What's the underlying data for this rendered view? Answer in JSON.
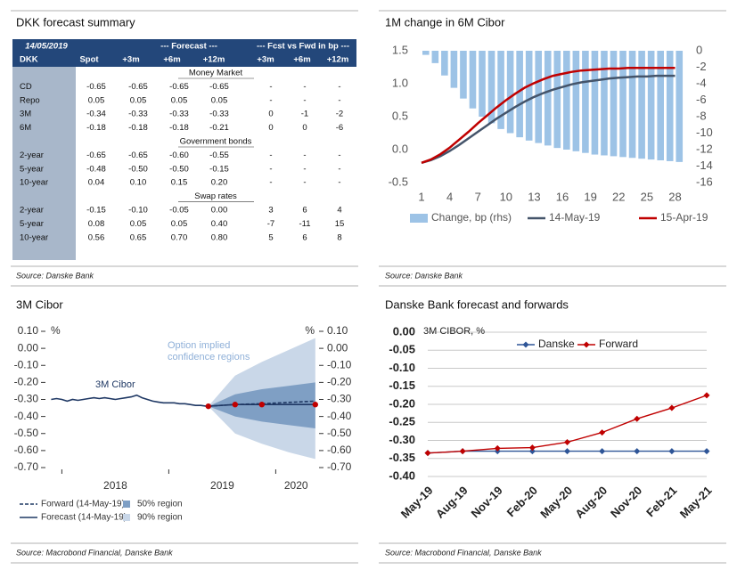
{
  "table": {
    "title": "DKK forecast summary",
    "header": [
      [
        "14/05/2019",
        "--- Forecast ---",
        "--- Fcst vs Fwd in bp ---"
      ],
      [
        "DKK",
        "Spot",
        "+3m",
        "+6m",
        "+12m",
        "+3m",
        "+6m",
        "+12m"
      ]
    ],
    "sections": [
      {
        "name": "Money Market",
        "rows": [
          [
            "CD",
            "-0.65",
            "-0.65",
            "-0.65",
            "-0.65",
            "-",
            "-",
            "-"
          ],
          [
            "Repo",
            "0.05",
            "0.05",
            "0.05",
            "0.05",
            "-",
            "-",
            "-"
          ],
          [
            "3M",
            "-0.34",
            "-0.33",
            "-0.33",
            "-0.33",
            "0",
            "-1",
            "-2"
          ],
          [
            "6M",
            "-0.18",
            "-0.18",
            "-0.18",
            "-0.21",
            "0",
            "0",
            "-6"
          ]
        ]
      },
      {
        "name": "Government bonds",
        "rows": [
          [
            "2-year",
            "-0.65",
            "-0.65",
            "-0.60",
            "-0.55",
            "-",
            "-",
            "-"
          ],
          [
            "5-year",
            "-0.48",
            "-0.50",
            "-0.50",
            "-0.15",
            "-",
            "-",
            "-"
          ],
          [
            "10-year",
            "0.04",
            "0.10",
            "0.15",
            "0.20",
            "-",
            "-",
            "-"
          ]
        ]
      },
      {
        "name": "Swap rates",
        "rows": [
          [
            "2-year",
            "-0.15",
            "-0.10",
            "-0.05",
            "0.00",
            "3",
            "6",
            "4"
          ],
          [
            "5-year",
            "0.08",
            "0.05",
            "0.05",
            "0.40",
            "-7",
            "-11",
            "15"
          ],
          [
            "10-year",
            "0.56",
            "0.65",
            "0.70",
            "0.80",
            "5",
            "6",
            "8"
          ]
        ]
      }
    ],
    "source": "Source: Danske Bank"
  },
  "chart_data": [
    {
      "type": "combo",
      "title": "1M change in 6M Cibor",
      "source": "Source: Danske Bank",
      "x": [
        1,
        2,
        3,
        4,
        5,
        6,
        7,
        8,
        9,
        10,
        11,
        12,
        13,
        14,
        15,
        16,
        17,
        18,
        19,
        20,
        21,
        22,
        23,
        24,
        25,
        26,
        27,
        28
      ],
      "xlim": [
        1,
        29
      ],
      "xticks": [
        1,
        4,
        7,
        10,
        13,
        16,
        19,
        22,
        25,
        28
      ],
      "ylim": [
        -0.5,
        1.5
      ],
      "yticks": [
        {
          "value": 1.5,
          "label": "1.5"
        },
        {
          "value": 1,
          "label": "1.0"
        },
        {
          "value": 0.5,
          "label": "0.5"
        },
        {
          "value": 0,
          "label": "0.0"
        },
        {
          "value": -0.5,
          "label": "-0.5"
        }
      ],
      "y2lim": [
        -16,
        0
      ],
      "y2ticks": [
        0,
        -2,
        -4,
        -6,
        -8,
        -10,
        -12,
        -14,
        -16
      ],
      "legend": "bottom",
      "series": [
        {
          "name": "Change, bp (rhs)",
          "type": "bar",
          "axis": "y2",
          "color": "#9dc3e6",
          "values": [
            -0.5,
            -1.5,
            -3,
            -4.5,
            -5.8,
            -7,
            -8,
            -8.8,
            -9.5,
            -10,
            -10.5,
            -10.9,
            -11.2,
            -11.5,
            -11.8,
            -12,
            -12.2,
            -12.4,
            -12.6,
            -12.7,
            -12.8,
            -12.9,
            -13,
            -13.1,
            -13.2,
            -13.3,
            -13.4,
            -13.5
          ]
        },
        {
          "name": "14-May-19",
          "type": "line",
          "color": "#44546a",
          "values": [
            -0.2,
            -0.16,
            -0.1,
            -0.02,
            0.07,
            0.17,
            0.27,
            0.37,
            0.47,
            0.56,
            0.65,
            0.73,
            0.8,
            0.86,
            0.91,
            0.95,
            0.99,
            1.02,
            1.04,
            1.06,
            1.08,
            1.09,
            1.1,
            1.11,
            1.11,
            1.12,
            1.12,
            1.12
          ]
        },
        {
          "name": "15-Apr-19",
          "type": "line",
          "color": "#c00000",
          "values": [
            -0.2,
            -0.15,
            -0.07,
            0.03,
            0.15,
            0.27,
            0.4,
            0.52,
            0.64,
            0.75,
            0.85,
            0.94,
            1.01,
            1.07,
            1.12,
            1.15,
            1.18,
            1.2,
            1.21,
            1.22,
            1.23,
            1.23,
            1.24,
            1.24,
            1.24,
            1.24,
            1.24,
            1.24
          ]
        }
      ]
    },
    {
      "type": "line",
      "title": "3M Cibor",
      "source": "Source: Macrobond Financial, Danske Bank",
      "y_label": "%",
      "y2_label": "%",
      "xlim": [
        2017.88,
        2020.38
      ],
      "xticks": [
        2018,
        2019,
        2020
      ],
      "ylim": [
        -0.7,
        0.1
      ],
      "yticks": [
        {
          "value": 0.1,
          "label": "0.10"
        },
        {
          "value": 0,
          "label": "0.00"
        },
        {
          "value": -0.1,
          "label": "-0.10"
        },
        {
          "value": -0.2,
          "label": "-0.20"
        },
        {
          "value": -0.3,
          "label": "-0.30"
        },
        {
          "value": -0.4,
          "label": "-0.40"
        },
        {
          "value": -0.5,
          "label": "-0.50"
        },
        {
          "value": -0.6,
          "label": "-0.60"
        },
        {
          "value": -0.7,
          "label": "-0.70"
        }
      ],
      "y2lim": [
        -0.7,
        0.1
      ],
      "y2ticks": [
        {
          "value": 0.1,
          "label": "0.10"
        },
        {
          "value": 0,
          "label": "0.00"
        },
        {
          "value": -0.1,
          "label": "-0.10"
        },
        {
          "value": -0.2,
          "label": "-0.20"
        },
        {
          "value": -0.3,
          "label": "-0.30"
        },
        {
          "value": -0.4,
          "label": "-0.40"
        },
        {
          "value": -0.5,
          "label": "-0.50"
        },
        {
          "value": -0.6,
          "label": "-0.60"
        },
        {
          "value": -0.7,
          "label": "-0.70"
        }
      ],
      "annotations": [
        "3M Cibor",
        "Option implied",
        "confidence regions"
      ],
      "bands": [
        {
          "name": "50% region",
          "color": "#7f9fc4",
          "x": [
            2019.37,
            2019.62,
            2019.87,
            2020.12,
            2020.37
          ],
          "upper": [
            -0.34,
            -0.27,
            -0.24,
            -0.22,
            -0.2
          ],
          "lower": [
            -0.34,
            -0.4,
            -0.43,
            -0.45,
            -0.47
          ]
        },
        {
          "name": "90% region",
          "color": "#c9d7e8",
          "x": [
            2019.37,
            2019.62,
            2019.87,
            2020.12,
            2020.37
          ],
          "upper": [
            -0.34,
            -0.16,
            -0.08,
            -0.01,
            0.06
          ],
          "lower": [
            -0.34,
            -0.5,
            -0.56,
            -0.61,
            -0.65
          ]
        }
      ],
      "series": [
        {
          "color": "#1f3864",
          "x": [
            2017.9,
            2017.95,
            2018,
            2018.05,
            2018.1,
            2018.15,
            2018.2,
            2018.25,
            2018.3,
            2018.35,
            2018.4,
            2018.45,
            2018.5,
            2018.55,
            2018.6,
            2018.65,
            2018.7,
            2018.75,
            2018.8,
            2018.85,
            2018.9,
            2018.95,
            2019,
            2019.05,
            2019.1,
            2019.15,
            2019.2,
            2019.25,
            2019.3,
            2019.35
          ],
          "values": [
            -0.3,
            -0.295,
            -0.3,
            -0.31,
            -0.3,
            -0.305,
            -0.3,
            -0.295,
            -0.29,
            -0.295,
            -0.29,
            -0.295,
            -0.3,
            -0.295,
            -0.29,
            -0.285,
            -0.275,
            -0.29,
            -0.3,
            -0.31,
            -0.315,
            -0.32,
            -0.32,
            -0.32,
            -0.325,
            -0.325,
            -0.33,
            -0.335,
            -0.335,
            -0.34
          ]
        },
        {
          "name": "Forward (14-May-19)",
          "color": "#1f3864",
          "dash": true,
          "x": [
            2019.37,
            2019.62,
            2019.87,
            2020.37
          ],
          "values": [
            -0.34,
            -0.33,
            -0.325,
            -0.31
          ]
        },
        {
          "name": "Forecast (14-May-19)",
          "color": "#1f3864",
          "marker": "circle",
          "marker_color": "#c00000",
          "x": [
            2019.37,
            2019.62,
            2019.87,
            2020.37
          ],
          "values": [
            -0.34,
            -0.33,
            -0.33,
            -0.33
          ]
        }
      ]
    },
    {
      "type": "line",
      "title": "Danske Bank forecast and forwards",
      "source": "Source: Macrobond Financial, Danske Bank",
      "annotations": [
        "3M CIBOR, %"
      ],
      "grid": true,
      "legend": "top",
      "categories": [
        "May-19",
        "Aug-19",
        "Nov-19",
        "Feb-20",
        "May-20",
        "Aug-20",
        "Nov-20",
        "Feb-21",
        "May-21"
      ],
      "ylim": [
        -0.4,
        0
      ],
      "yticks": [
        {
          "value": 0,
          "label": "0.00"
        },
        {
          "value": -0.05,
          "label": "-0.05"
        },
        {
          "value": -0.1,
          "label": "-0.10"
        },
        {
          "value": -0.15,
          "label": "-0.15"
        },
        {
          "value": -0.2,
          "label": "-0.20"
        },
        {
          "value": -0.25,
          "label": "-0.25"
        },
        {
          "value": -0.3,
          "label": "-0.30"
        },
        {
          "value": -0.35,
          "label": "-0.35"
        },
        {
          "value": -0.4,
          "label": "-0.40"
        }
      ],
      "series": [
        {
          "name": "Danske",
          "color": "#2e5597",
          "marker": "diamond",
          "values": [
            -0.335,
            -0.33,
            -0.33,
            -0.33,
            -0.33,
            -0.33,
            -0.33,
            -0.33,
            -0.33
          ]
        },
        {
          "name": "Forward",
          "color": "#c00000",
          "marker": "diamond",
          "values": [
            -0.335,
            -0.33,
            -0.322,
            -0.32,
            -0.305,
            -0.278,
            -0.24,
            -0.21,
            -0.175
          ]
        }
      ]
    }
  ]
}
